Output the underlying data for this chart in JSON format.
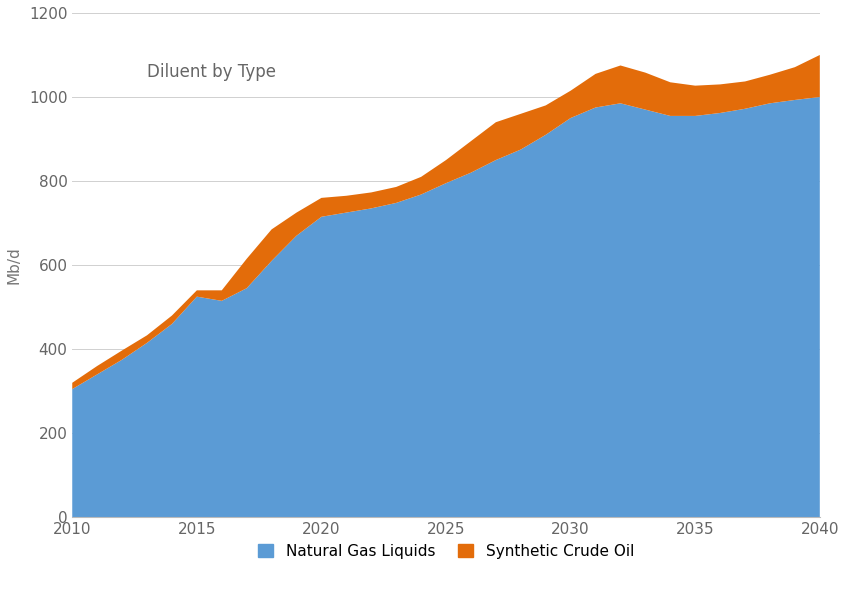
{
  "title": "Diluent by Type",
  "xlabel": "",
  "ylabel": "Mb/d",
  "xlim": [
    2010,
    2040
  ],
  "ylim": [
    0,
    1200
  ],
  "yticks": [
    0,
    200,
    400,
    600,
    800,
    1000,
    1200
  ],
  "xticks": [
    2010,
    2015,
    2020,
    2025,
    2030,
    2035,
    2040
  ],
  "background_color": "#ffffff",
  "ngl_color": "#5b9bd5",
  "sco_color": "#e36c0a",
  "years": [
    2010,
    2011,
    2012,
    2013,
    2014,
    2015,
    2016,
    2017,
    2018,
    2019,
    2020,
    2021,
    2022,
    2023,
    2024,
    2025,
    2026,
    2027,
    2028,
    2029,
    2030,
    2031,
    2032,
    2033,
    2034,
    2035,
    2036,
    2037,
    2038,
    2039,
    2040
  ],
  "ngl": [
    305,
    340,
    375,
    415,
    460,
    525,
    515,
    545,
    610,
    670,
    715,
    725,
    735,
    748,
    768,
    795,
    820,
    850,
    875,
    910,
    950,
    975,
    985,
    970,
    955,
    955,
    962,
    972,
    985,
    993,
    1000
  ],
  "sco": [
    15,
    20,
    22,
    18,
    20,
    15,
    25,
    70,
    75,
    55,
    45,
    40,
    38,
    38,
    42,
    55,
    75,
    90,
    85,
    70,
    65,
    80,
    90,
    88,
    80,
    72,
    68,
    65,
    68,
    78,
    100
  ],
  "legend_labels": [
    "Natural Gas Liquids",
    "Synthetic Crude Oil"
  ],
  "title_fontsize": 12,
  "axis_fontsize": 11,
  "tick_fontsize": 11,
  "legend_fontsize": 11
}
